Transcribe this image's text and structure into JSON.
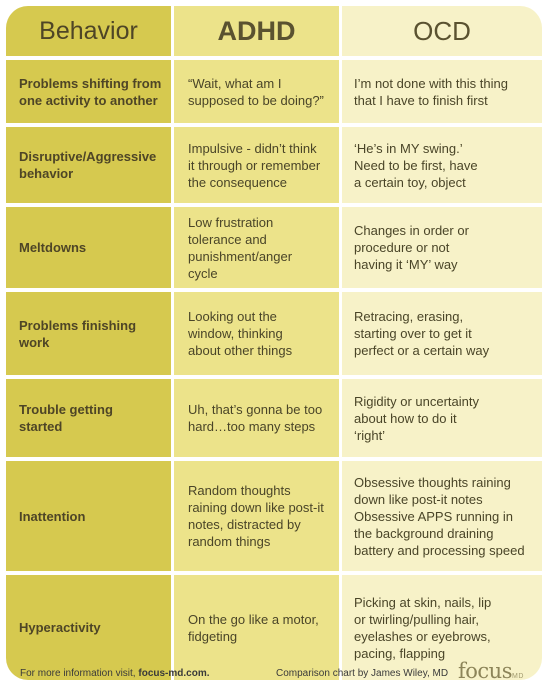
{
  "header": {
    "behavior": "Behavior",
    "adhd": "ADHD",
    "ocd": "OCD"
  },
  "rows": [
    {
      "behavior": "Problems shifting from\none activity to another",
      "adhd": "“Wait, what am I\nsupposed to be doing?”",
      "ocd": "I’m not done with this thing\nthat I have to finish first"
    },
    {
      "behavior": "Disruptive/Aggressive\nbehavior",
      "adhd": "Impulsive - didn’t think\nit through or remember\nthe consequence",
      "ocd": "‘He’s in MY swing.’\nNeed to be first, have\na certain toy, object"
    },
    {
      "behavior": "Meltdowns",
      "adhd": "Low frustration\ntolerance and\npunishment/anger\ncycle",
      "ocd": "Changes in order or\nprocedure or not\nhaving it ‘MY’ way"
    },
    {
      "behavior": "Problems finishing\nwork",
      "adhd": "Looking out the\nwindow, thinking\nabout other things",
      "ocd": "Retracing, erasing,\nstarting over to get it\nperfect or a certain way"
    },
    {
      "behavior": "Trouble getting\nstarted",
      "adhd": "Uh, that’s gonna be too\nhard…too many steps",
      "ocd": "Rigidity or uncertainty\nabout how to do it\n‘right’"
    },
    {
      "behavior": "Inattention",
      "adhd": "Random thoughts\nraining down like post-it\nnotes, distracted by\nrandom things",
      "ocd": "Obsessive thoughts raining\ndown like post-it notes\nObsessive APPS running in\nthe background draining\nbattery and processing speed"
    },
    {
      "behavior": "Hyperactivity",
      "adhd": "On the go like a motor,\nfidgeting",
      "ocd": "Picking at skin, nails, lip\nor twirling/pulling hair,\neyelashes or eyebrows,\npacing, flapping"
    }
  ],
  "footer": {
    "info_prefix": "For more information visit, ",
    "info_link": "focus-md.com.",
    "credit": "Comparison chart by James Wiley, MD",
    "logo_main": "focus",
    "logo_sub": "MD"
  },
  "colors": {
    "behavior_column": "#d6c94f",
    "adhd_column": "#ece38a",
    "ocd_column": "#f7f2c8",
    "text": "#4a4528"
  }
}
